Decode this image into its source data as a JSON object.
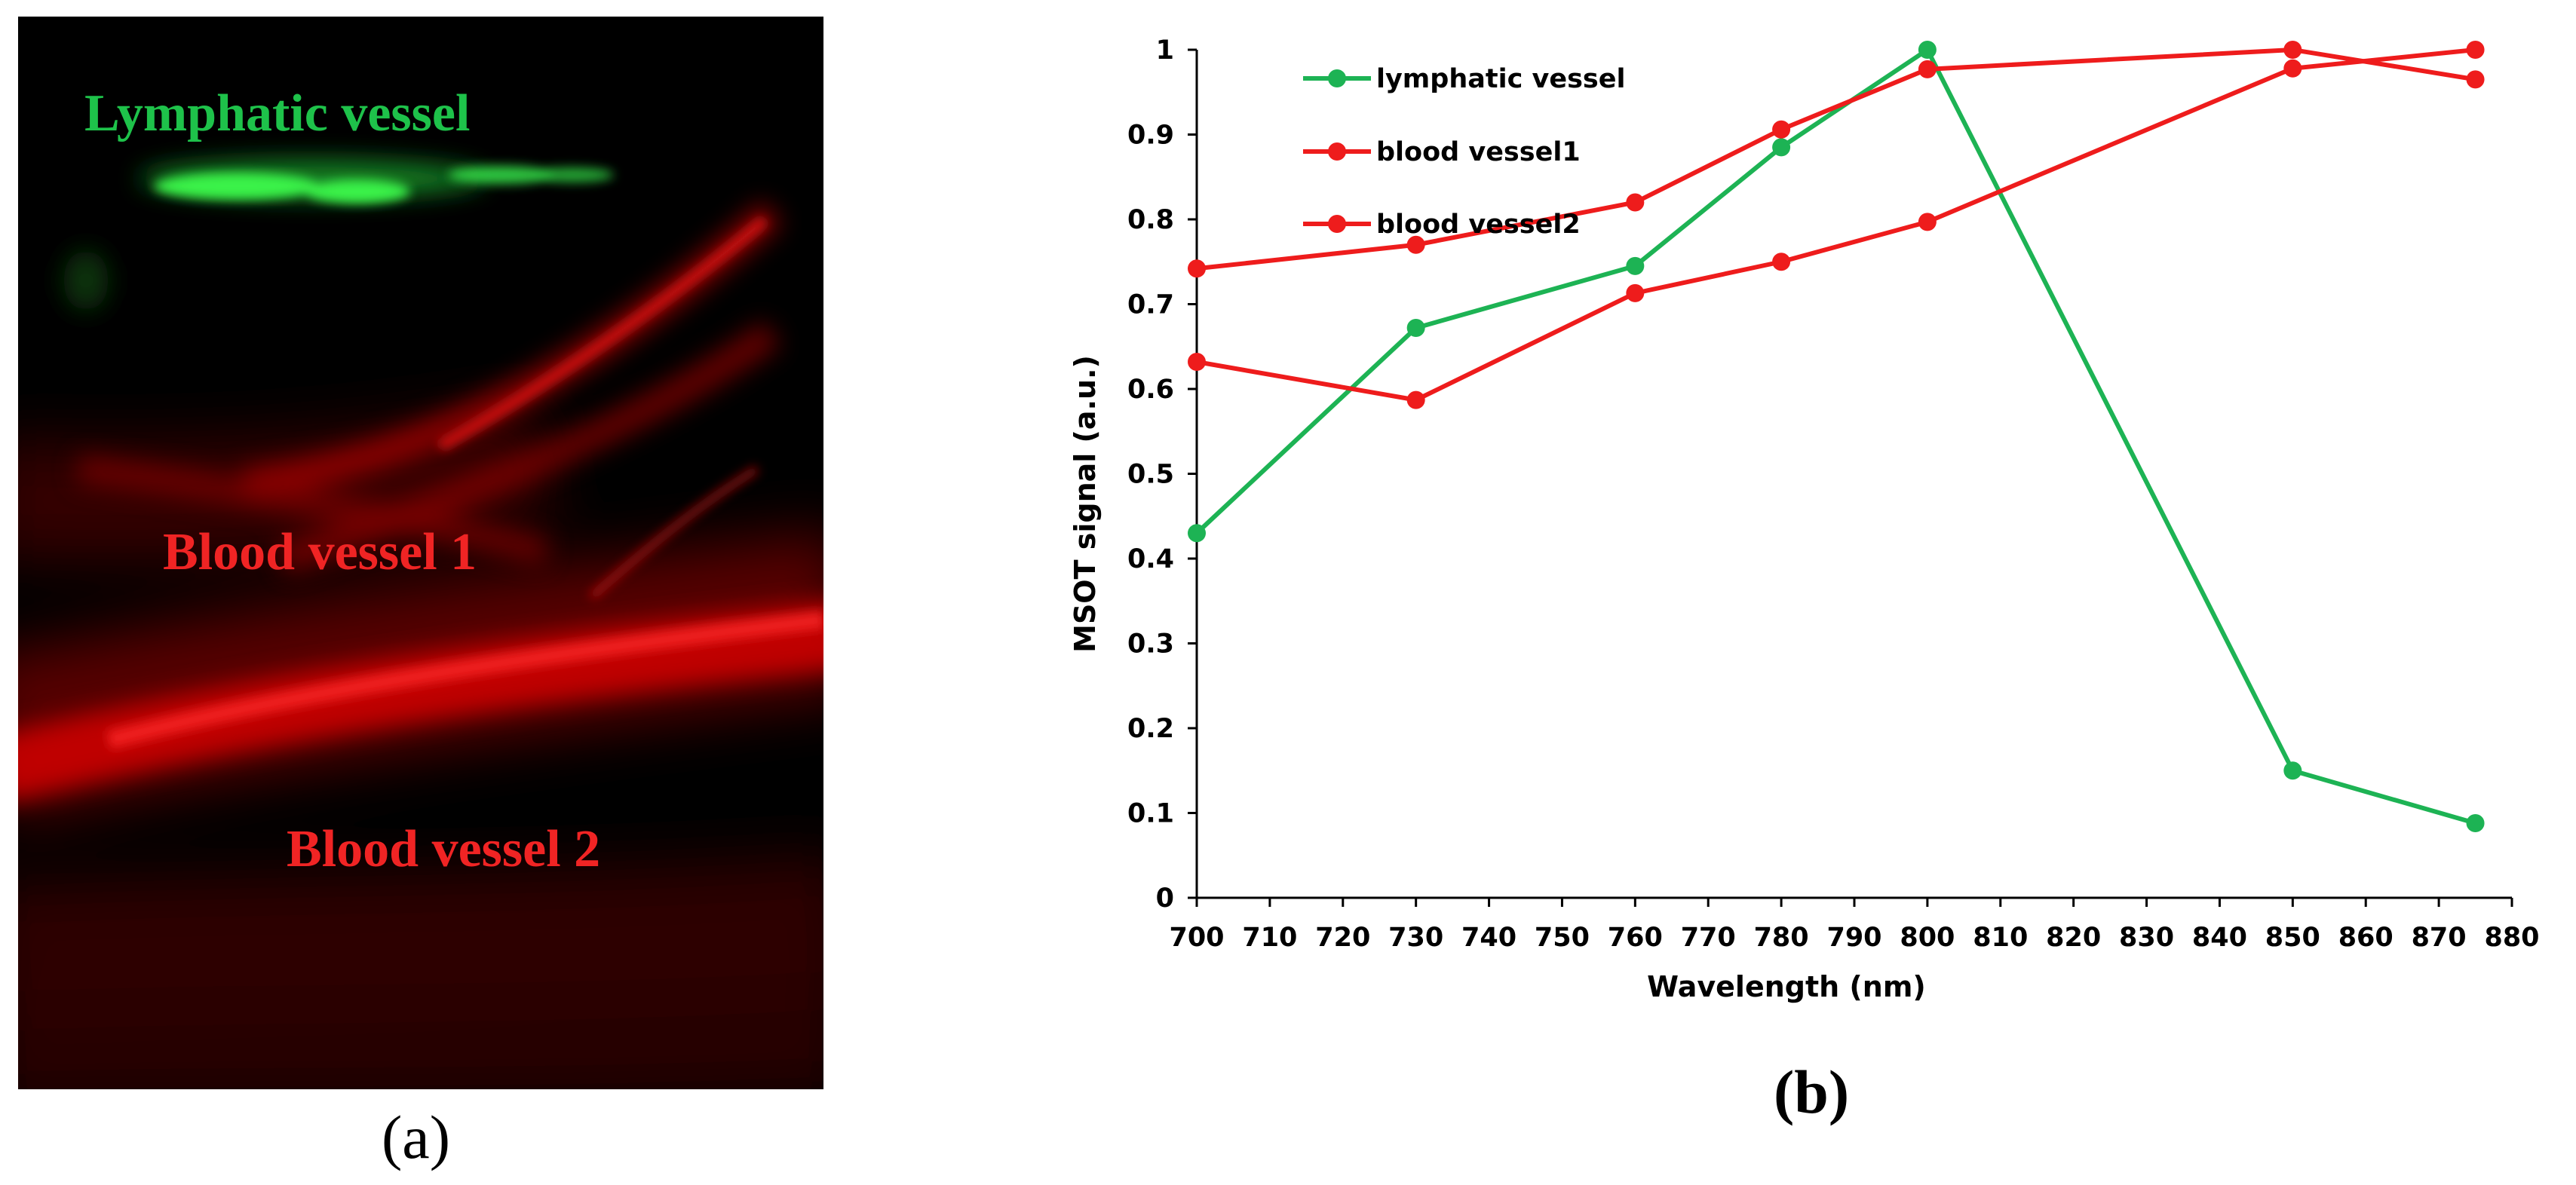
{
  "panel_a": {
    "caption": "(a)",
    "labels": {
      "lymphatic": "Lymphatic vessel",
      "blood1": "Blood vessel 1",
      "blood2": "Blood vessel 2"
    }
  },
  "panel_b": {
    "caption": "(b)"
  },
  "colors": {
    "green": "#1db354",
    "red": "#ee1c1c",
    "lymph_glow": "#35e84a",
    "vessel_glow": "#ff1a1a"
  },
  "chart_data": {
    "type": "line",
    "title": "",
    "xlabel": "Wavelength (nm)",
    "ylabel": "MSOT signal (a.u.)",
    "xlim": [
      700,
      880
    ],
    "ylim": [
      0,
      1
    ],
    "xticks": [
      700,
      710,
      720,
      730,
      740,
      750,
      760,
      770,
      780,
      790,
      800,
      810,
      820,
      830,
      840,
      850,
      860,
      870,
      880
    ],
    "yticks": [
      0,
      0.1,
      0.2,
      0.3,
      0.4,
      0.5,
      0.6,
      0.7,
      0.8,
      0.9,
      1
    ],
    "ytick_labels": [
      "0",
      "0.1",
      "0.2",
      "0.3",
      "0.4",
      "0.5",
      "0.6",
      "0.7",
      "0.8",
      "0.9",
      "1"
    ],
    "legend_position": "top-left",
    "series": [
      {
        "name": "lymphatic vessel",
        "color": "#1db354",
        "x": [
          700,
          730,
          760,
          780,
          800,
          850,
          875
        ],
        "y": [
          0.43,
          0.672,
          0.745,
          0.885,
          1.0,
          0.15,
          0.088
        ]
      },
      {
        "name": "blood vessel1",
        "color": "#ee1c1c",
        "x": [
          700,
          730,
          760,
          780,
          800,
          850,
          875
        ],
        "y": [
          0.742,
          0.77,
          0.82,
          0.906,
          0.977,
          1.0,
          0.965
        ]
      },
      {
        "name": "blood vessel2",
        "color": "#ee1c1c",
        "x": [
          700,
          730,
          760,
          780,
          800,
          850,
          875
        ],
        "y": [
          0.632,
          0.587,
          0.713,
          0.75,
          0.797,
          0.978,
          1.0
        ]
      }
    ]
  }
}
